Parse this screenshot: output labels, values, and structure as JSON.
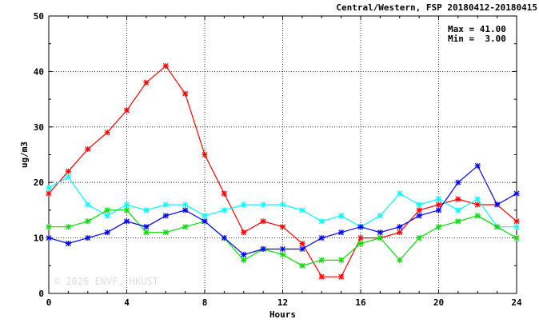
{
  "chart_data": {
    "type": "line",
    "title": "Central/Western, FSP 20180412-20180415",
    "xlabel": "Hours",
    "ylabel": "ug/m3",
    "xlim": [
      0,
      24
    ],
    "ylim": [
      0,
      50
    ],
    "xticks": [
      "0",
      "4",
      "8",
      "12",
      "16",
      "20",
      "24"
    ],
    "yticks": [
      "0",
      "10",
      "20",
      "30",
      "40",
      "50"
    ],
    "grid": true,
    "stats": {
      "max": "Max = 41.00",
      "min": "Min =  3.00"
    },
    "watermark": "© 2026 ENVF, HKUST",
    "x": [
      0,
      1,
      2,
      3,
      4,
      5,
      6,
      7,
      8,
      9,
      10,
      11,
      12,
      13,
      14,
      15,
      16,
      17,
      18,
      19,
      20,
      21,
      22,
      23,
      24
    ],
    "series": [
      {
        "color": "#ff0000",
        "values": [
          18,
          22,
          26,
          29,
          33,
          38,
          41,
          36,
          25,
          18,
          11,
          13,
          12,
          9,
          3,
          3,
          10,
          10,
          11,
          15,
          16,
          17,
          16,
          16,
          13
        ]
      },
      {
        "color": "#00ffff",
        "values": [
          19,
          21,
          16,
          14,
          16,
          15,
          16,
          16,
          14,
          15,
          16,
          16,
          16,
          15,
          13,
          14,
          12,
          14,
          18,
          16,
          17,
          15,
          17,
          12,
          12
        ]
      },
      {
        "color": "#00e000",
        "values": [
          12,
          12,
          13,
          15,
          15,
          11,
          11,
          12,
          13,
          10,
          6,
          8,
          7,
          5,
          6,
          6,
          9,
          10,
          6,
          10,
          12,
          13,
          14,
          12,
          10
        ]
      },
      {
        "color": "#0000ff",
        "values": [
          10,
          9,
          10,
          11,
          13,
          12,
          14,
          15,
          13,
          10,
          7,
          8,
          8,
          8,
          10,
          11,
          12,
          11,
          12,
          14,
          15,
          20,
          23,
          16,
          18
        ]
      }
    ]
  }
}
